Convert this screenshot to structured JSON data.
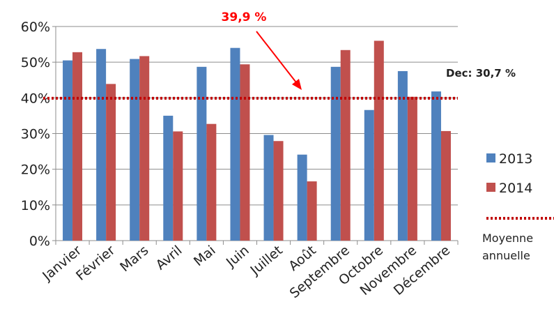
{
  "chart_data": {
    "type": "bar",
    "categories": [
      "Janvier",
      "Février",
      "Mars",
      "Avril",
      "Mai",
      "Juin",
      "Juillet",
      "Août",
      "Septembre",
      "Octobre",
      "Novembre",
      "Décembre"
    ],
    "series": [
      {
        "name": "2013",
        "color": "#4f81bd",
        "values": [
          50.5,
          53.7,
          50.9,
          35.0,
          48.7,
          54.0,
          29.6,
          24.1,
          48.7,
          36.6,
          47.5,
          41.8
        ]
      },
      {
        "name": "2014",
        "color": "#c0504d",
        "values": [
          52.8,
          43.9,
          51.7,
          30.6,
          32.7,
          49.4,
          27.9,
          16.6,
          53.4,
          56.0,
          40.3,
          30.7
        ]
      }
    ],
    "ylim": [
      0,
      60
    ],
    "yticks": [
      "0%",
      "10%",
      "20%",
      "30%",
      "40%",
      "50%",
      "60%"
    ],
    "grid": true,
    "legend_position": "right",
    "reference_line": {
      "label": "Moyenne annuelle",
      "label_lines": [
        "Moyenne",
        "annuelle"
      ],
      "value": 39.9,
      "color": "#c00000",
      "style": "dotted"
    },
    "annotations": {
      "average": "39,9 %",
      "december": "Dec: 30,7 %"
    }
  }
}
